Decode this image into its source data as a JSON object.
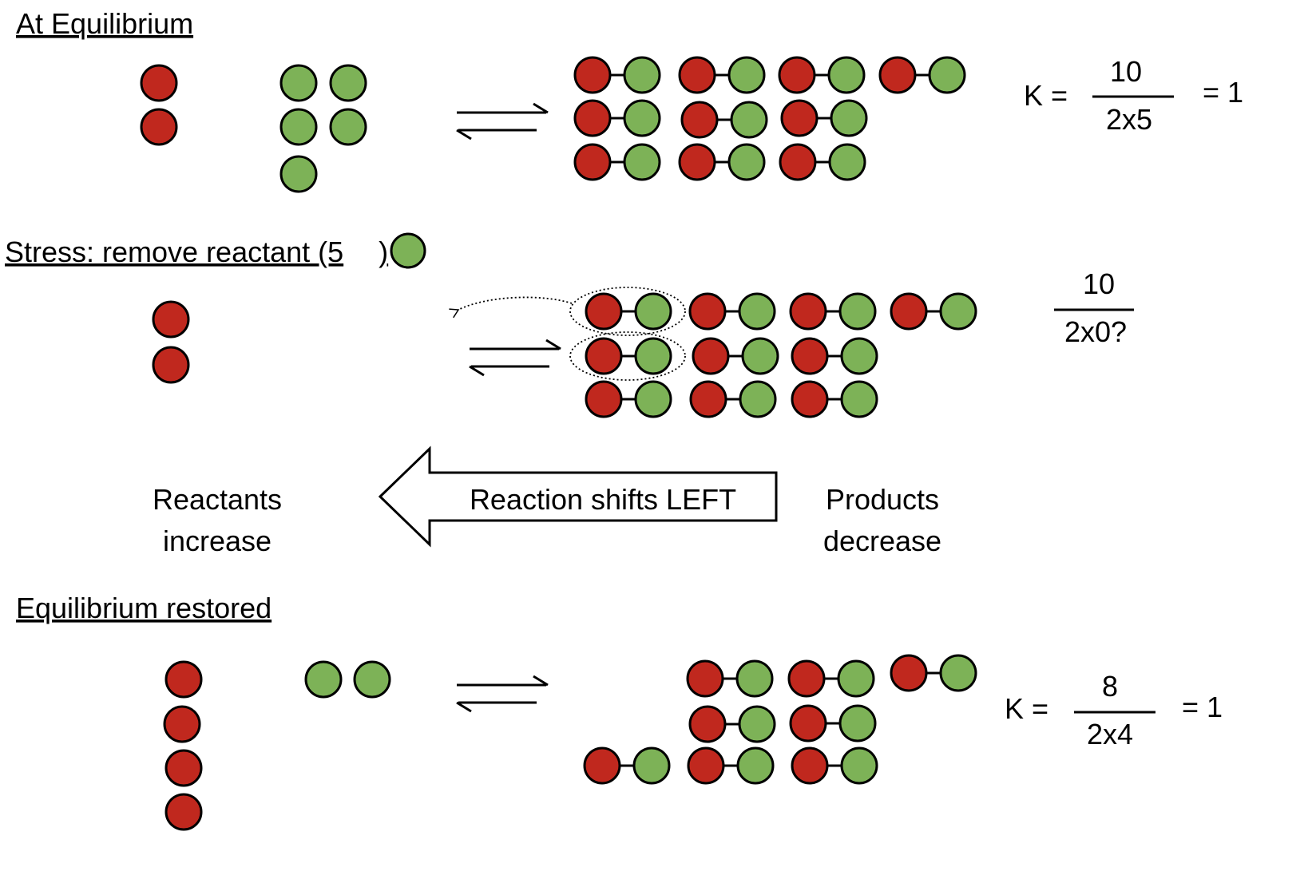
{
  "colors": {
    "reactant_red": "#c0281e",
    "reactant_green": "#7db257",
    "outline": "#000000",
    "background": "#ffffff"
  },
  "section1": {
    "heading": "At Equilibrium",
    "k_label": "K =",
    "numerator": "10",
    "denominator": "2x5",
    "result": "= 1",
    "free_red_count": 2,
    "free_green_count": 5,
    "product_count": 10
  },
  "section2": {
    "heading": "Stress:  remove reactant (5",
    "heading_close": ")",
    "numerator": "10",
    "denominator": "2x0?",
    "free_red_count": 2,
    "product_count": 10,
    "circled_product_count": 2
  },
  "shift": {
    "left_label_line1": "Reactants",
    "left_label_line2": "increase",
    "arrow_label": "Reaction shifts LEFT",
    "right_label_line1": "Products",
    "right_label_line2": "decrease"
  },
  "section3": {
    "heading": "Equilibrium restored",
    "k_label": "K =",
    "numerator": "8",
    "denominator": "2x4",
    "result": "= 1",
    "free_red_count": 4,
    "free_green_count": 2,
    "product_count": 8
  }
}
